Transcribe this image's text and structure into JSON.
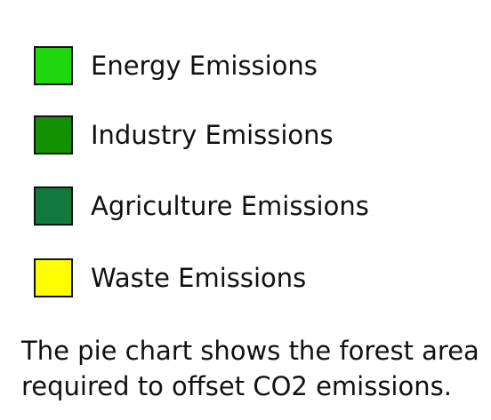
{
  "chart_data": {
    "type": "pie",
    "legend": [
      {
        "label": "Energy Emissions",
        "color": "#1fd70f"
      },
      {
        "label": "Industry Emissions",
        "color": "#139100"
      },
      {
        "label": "Agriculture Emissions",
        "color": "#137a3d"
      },
      {
        "label": "Waste Emissions",
        "color": "#ffff00"
      }
    ],
    "caption": "The pie chart shows the forest area required to offset CO2 emissions."
  }
}
